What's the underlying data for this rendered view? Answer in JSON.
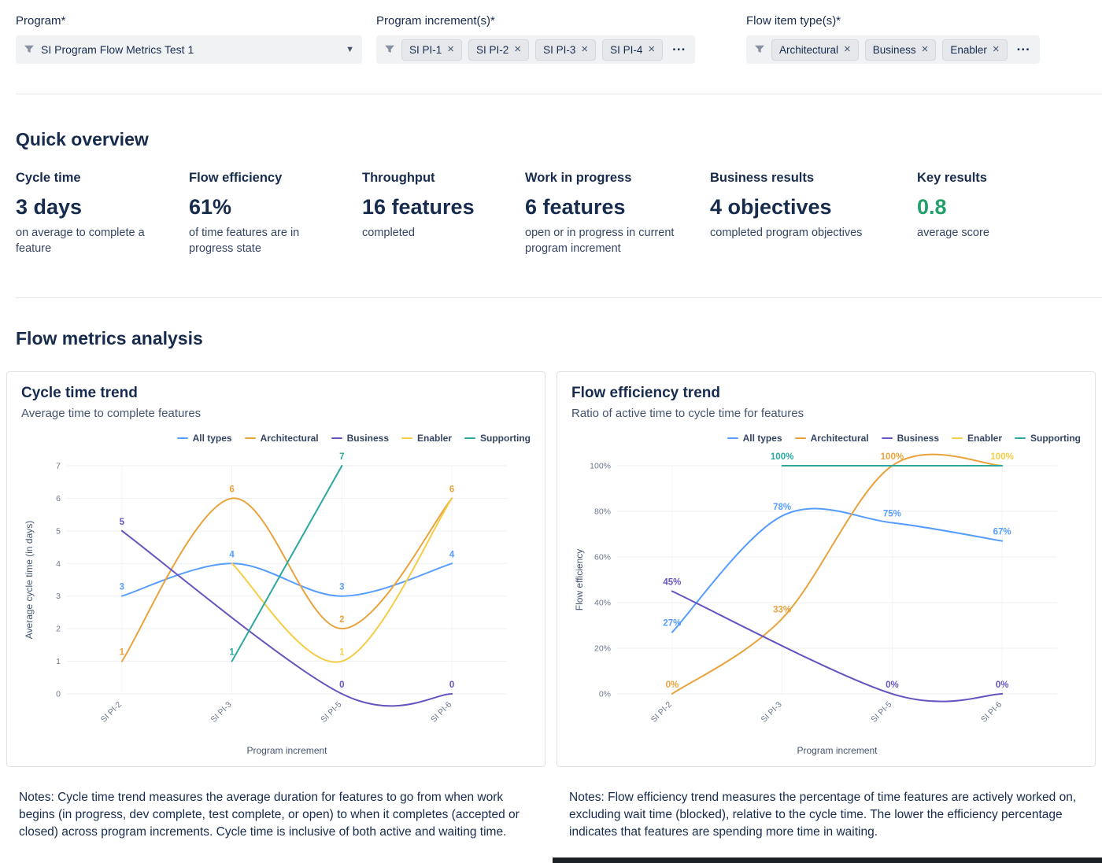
{
  "filters": {
    "program": {
      "label": "Program*",
      "value": "SI Program Flow Metrics Test 1"
    },
    "increments": {
      "label": "Program increment(s)*",
      "chips": [
        "SI PI-1",
        "SI PI-2",
        "SI PI-3",
        "SI PI-4"
      ],
      "overflow": "..."
    },
    "flow_item_types": {
      "label": "Flow item type(s)*",
      "chips": [
        "Architectural",
        "Business",
        "Enabler"
      ],
      "overflow": "..."
    }
  },
  "quick_overview": {
    "title": "Quick overview",
    "metrics": [
      {
        "label": "Cycle time",
        "value": "3 days",
        "caption": "on average to complete a feature"
      },
      {
        "label": "Flow efficiency",
        "value": "61%",
        "caption": "of time features are in progress state"
      },
      {
        "label": "Throughput",
        "value": "16 features",
        "caption": "completed"
      },
      {
        "label": "Work in progress",
        "value": "6 features",
        "caption": "open or in progress in current program increment"
      },
      {
        "label": "Business results",
        "value": "4 objectives",
        "caption": "completed program objectives"
      },
      {
        "label": "Key results",
        "value": "0.8",
        "caption": "average score",
        "value_color": "#22A06B"
      }
    ]
  },
  "analysis": {
    "title": "Flow metrics analysis"
  },
  "chart_data": [
    {
      "type": "line",
      "title": "Cycle time trend",
      "subtitle": "Average time to complete features",
      "xlabel": "Program increment",
      "ylabel": "Average cycle time (in days)",
      "ylim": [
        0,
        7
      ],
      "yticks": [
        0,
        1,
        2,
        3,
        4,
        5,
        6,
        7
      ],
      "ytick_format": "plain",
      "categories": [
        "SI PI-2",
        "SI PI-3",
        "SI PI-5",
        "SI PI-6"
      ],
      "legend_position": "top-right",
      "grid": true,
      "series": [
        {
          "name": "All types",
          "color": "#579DFF",
          "values": [
            3,
            4,
            3,
            4
          ],
          "labels": [
            "3",
            "4",
            "3",
            "4"
          ]
        },
        {
          "name": "Architectural",
          "color": "#E8A33D",
          "values": [
            1,
            6,
            2,
            6
          ],
          "labels": [
            "1",
            "6",
            "2",
            "6"
          ]
        },
        {
          "name": "Business",
          "color": "#6554C0",
          "values": [
            5,
            null,
            0,
            0
          ],
          "labels": [
            "5",
            "",
            "0",
            "0"
          ]
        },
        {
          "name": "Enabler",
          "color": "#F5CD47",
          "values": [
            null,
            4,
            1,
            6
          ],
          "labels": [
            "",
            "",
            "1",
            ""
          ]
        },
        {
          "name": "Supporting",
          "color": "#2BA7A0",
          "values": [
            null,
            1,
            7,
            null
          ],
          "labels": [
            "",
            "1",
            "7",
            ""
          ]
        }
      ],
      "note": "Notes: Cycle time trend measures the average duration for features to go from when work begins (in progress, dev complete, test complete, or open) to when it completes (accepted or closed) across program increments. Cycle time is inclusive of both active and waiting time."
    },
    {
      "type": "line",
      "title": "Flow efficiency trend",
      "subtitle": "Ratio of active time to cycle time for features",
      "xlabel": "Program increment",
      "ylabel": "Flow efficiency",
      "ylim": [
        0,
        100
      ],
      "yticks": [
        0,
        20,
        40,
        60,
        80,
        100
      ],
      "ytick_format": "percent",
      "categories": [
        "SI PI-2",
        "SI PI-3",
        "SI PI-5",
        "SI PI-6"
      ],
      "legend_position": "top-right",
      "grid": true,
      "series": [
        {
          "name": "All types",
          "color": "#579DFF",
          "values": [
            27,
            78,
            75,
            67
          ],
          "labels": [
            "27%",
            "78%",
            "75%",
            "67%"
          ]
        },
        {
          "name": "Architectural",
          "color": "#E8A33D",
          "values": [
            0,
            33,
            100,
            100
          ],
          "labels": [
            "0%",
            "33%",
            "100%",
            ""
          ]
        },
        {
          "name": "Business",
          "color": "#6554C0",
          "values": [
            45,
            null,
            0,
            0
          ],
          "labels": [
            "45%",
            "",
            "0%",
            "0%"
          ]
        },
        {
          "name": "Enabler",
          "color": "#F5CD47",
          "values": [
            null,
            null,
            100,
            100
          ],
          "labels": [
            "",
            "",
            "",
            "100%"
          ]
        },
        {
          "name": "Supporting",
          "color": "#2BA7A0",
          "values": [
            null,
            100,
            100,
            100
          ],
          "labels": [
            "",
            "100%",
            "",
            ""
          ]
        }
      ],
      "note": "Notes: Flow efficiency trend measures the percentage of time features are actively worked on, excluding wait time (blocked), relative to the cycle time. The lower the efficiency percentage indicates that features are spending more time in waiting."
    }
  ]
}
